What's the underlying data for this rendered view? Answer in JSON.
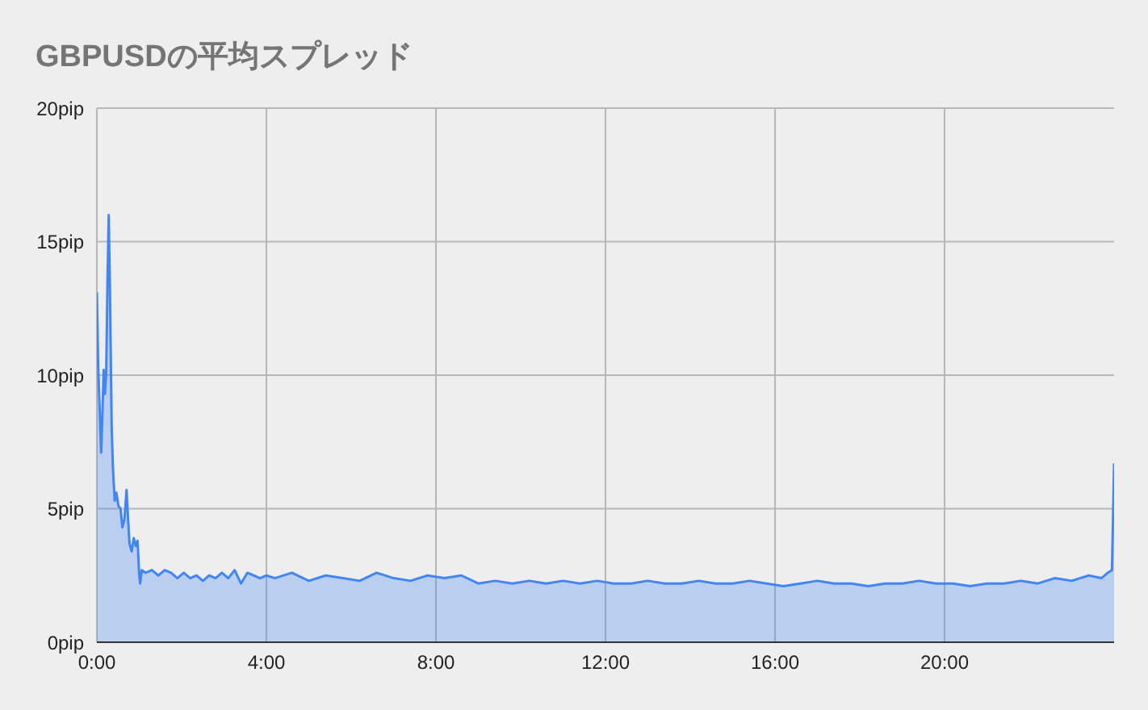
{
  "chart_data": {
    "type": "area",
    "title": "GBPUSDの平均スプレッド",
    "x": [
      0,
      0.03,
      0.06,
      0.1,
      0.13,
      0.16,
      0.19,
      0.22,
      0.25,
      0.28,
      0.31,
      0.35,
      0.38,
      0.42,
      0.46,
      0.51,
      0.56,
      0.6,
      0.65,
      0.7,
      0.74,
      0.77,
      0.82,
      0.87,
      0.92,
      0.96,
      1.0,
      1.02,
      1.06,
      1.15,
      1.3,
      1.45,
      1.6,
      1.75,
      1.9,
      2.05,
      2.2,
      2.35,
      2.5,
      2.65,
      2.8,
      2.95,
      3.1,
      3.25,
      3.4,
      3.55,
      3.7,
      3.85,
      4.0,
      4.2,
      4.6,
      5.0,
      5.4,
      5.8,
      6.2,
      6.6,
      7.0,
      7.4,
      7.8,
      8.2,
      8.6,
      9.0,
      9.4,
      9.8,
      10.2,
      10.6,
      11.0,
      11.4,
      11.8,
      12.2,
      12.6,
      13.0,
      13.4,
      13.8,
      14.2,
      14.6,
      15.0,
      15.4,
      15.8,
      16.2,
      16.6,
      17.0,
      17.4,
      17.8,
      18.2,
      18.6,
      19.0,
      19.4,
      19.8,
      20.2,
      20.6,
      21.0,
      21.4,
      21.8,
      22.2,
      22.6,
      23.0,
      23.4,
      23.7,
      23.85,
      23.95,
      24
    ],
    "series": [
      {
        "color": "#4285f4",
        "values": [
          13.1,
          10.4,
          9.0,
          7.1,
          8.5,
          10.2,
          9.3,
          10.1,
          13.5,
          16.0,
          13.0,
          8.0,
          6.5,
          5.3,
          5.6,
          5.1,
          5.0,
          4.3,
          4.6,
          5.7,
          4.5,
          3.7,
          3.4,
          3.9,
          3.6,
          3.8,
          2.5,
          2.2,
          2.7,
          2.6,
          2.7,
          2.5,
          2.7,
          2.6,
          2.4,
          2.6,
          2.4,
          2.5,
          2.3,
          2.5,
          2.4,
          2.6,
          2.4,
          2.7,
          2.2,
          2.6,
          2.5,
          2.4,
          2.5,
          2.4,
          2.6,
          2.3,
          2.5,
          2.4,
          2.3,
          2.6,
          2.4,
          2.3,
          2.5,
          2.4,
          2.5,
          2.2,
          2.3,
          2.2,
          2.3,
          2.2,
          2.3,
          2.2,
          2.3,
          2.2,
          2.2,
          2.3,
          2.2,
          2.2,
          2.3,
          2.2,
          2.2,
          2.3,
          2.2,
          2.1,
          2.2,
          2.3,
          2.2,
          2.2,
          2.1,
          2.2,
          2.2,
          2.3,
          2.2,
          2.2,
          2.1,
          2.2,
          2.2,
          2.3,
          2.2,
          2.4,
          2.3,
          2.5,
          2.4,
          2.6,
          2.7,
          6.7
        ]
      }
    ],
    "xlim": [
      0,
      24
    ],
    "xticks": [
      {
        "value": 0,
        "label": "0:00"
      },
      {
        "value": 4,
        "label": "4:00"
      },
      {
        "value": 8,
        "label": "8:00"
      },
      {
        "value": 12,
        "label": "12:00"
      },
      {
        "value": 16,
        "label": "16:00"
      },
      {
        "value": 20,
        "label": "20:00"
      }
    ],
    "ylim": [
      0,
      20
    ],
    "yticks": [
      {
        "value": 0,
        "label": "0pip"
      },
      {
        "value": 5,
        "label": "5pip"
      },
      {
        "value": 10,
        "label": "10pip"
      },
      {
        "value": 15,
        "label": "15pip"
      },
      {
        "value": 20,
        "label": "20pip"
      }
    ],
    "grid": true,
    "legend": false
  }
}
